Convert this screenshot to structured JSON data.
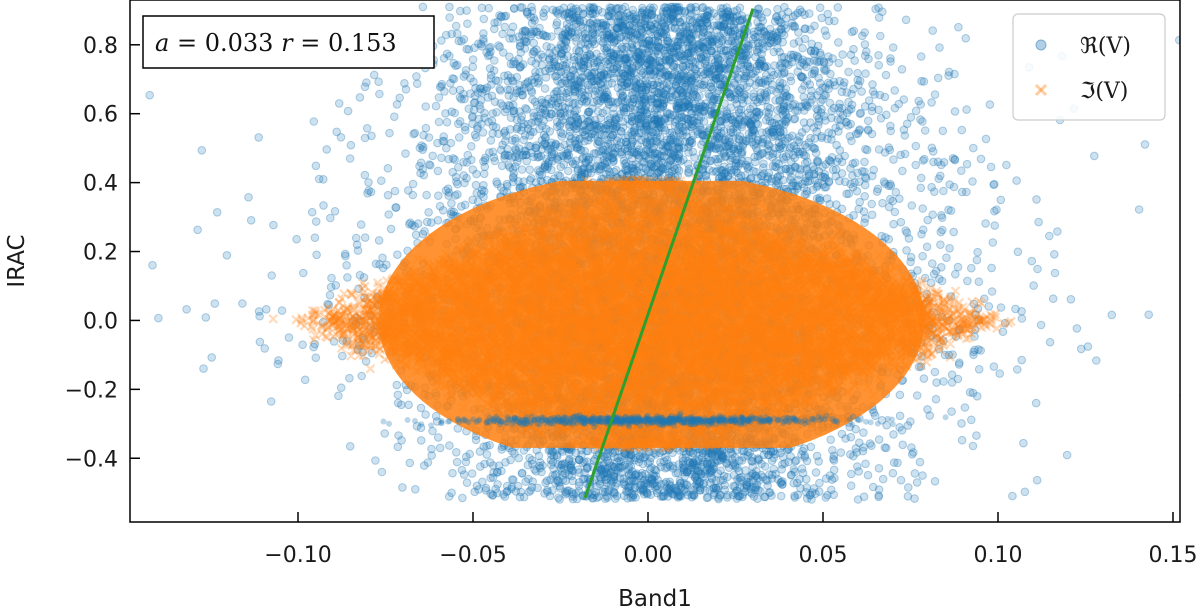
{
  "chart_data": {
    "type": "scatter",
    "xlabel": "Band1",
    "ylabel": "IRAC",
    "xlim": [
      -0.148,
      0.152
    ],
    "ylim": [
      -0.585,
      0.93
    ],
    "x_ticks": [
      -0.1,
      -0.05,
      0.0,
      0.05,
      0.1,
      0.15
    ],
    "x_tick_labels": [
      "−0.10",
      "−0.05",
      "0.00",
      "0.05",
      "0.10",
      "0.15"
    ],
    "y_ticks": [
      -0.4,
      -0.2,
      0.0,
      0.2,
      0.4,
      0.6,
      0.8
    ],
    "y_tick_labels": [
      "−0.4",
      "−0.2",
      "0.0",
      "0.2",
      "0.4",
      "0.6",
      "0.8"
    ],
    "grid": false,
    "legend_position": "top-right",
    "annotation": {
      "position": "top-left",
      "a_symbol": "a",
      "a_value": "0.033",
      "r_symbol": "r",
      "r_value": "0.153"
    },
    "series": [
      {
        "name": "ℜ(V)",
        "marker": "circle",
        "color": "#1f77b4",
        "alpha": 0.25,
        "distribution": {
          "x_center": 0.005,
          "x_spread": 0.03,
          "y_range": [
            -0.52,
            0.91
          ],
          "points_approx": 60000
        }
      },
      {
        "name": "ℑ(V)",
        "marker": "x",
        "color": "#ff7f0e",
        "alpha": 0.25,
        "distribution": {
          "x_center": 0.0,
          "x_spread": 0.04,
          "y_range": [
            -0.37,
            0.41
          ],
          "points_approx": 60000
        }
      }
    ],
    "fit_line": {
      "color": "#2ca02c",
      "points": [
        [
          -0.018,
          -0.515
        ],
        [
          0.03,
          0.905
        ]
      ]
    }
  }
}
